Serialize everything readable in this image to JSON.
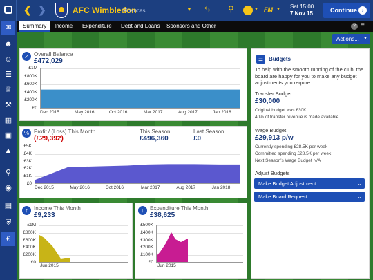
{
  "header": {
    "club": "AFC Wimbledon",
    "subpage": "Finances",
    "day": "Sat 15:00",
    "date": "7 Nov 15",
    "continue_label": "Continue"
  },
  "tabs": [
    "Summary",
    "Income",
    "Expenditure",
    "Debt and Loans",
    "Sponsors and Other"
  ],
  "actions_label": "Actions...",
  "overall": {
    "title": "Overall Balance",
    "value": "£472,029",
    "ylabels": [
      "£1M",
      "£800K",
      "£600K",
      "£400K",
      "£200K",
      "£0"
    ],
    "xlabels": [
      "Dec 2015",
      "May 2016",
      "Oct 2016",
      "Mar 2017",
      "Aug 2017",
      "Jan 2018"
    ]
  },
  "profit": {
    "title": "Profit / (Loss) This Month",
    "value": "(£29,392)",
    "season_title": "This Season",
    "season_value": "£496,360",
    "last_title": "Last Season",
    "last_value": "£0",
    "ylabels": [
      "£5K",
      "£4K",
      "£3K",
      "£2K",
      "£1K",
      "£0"
    ],
    "xlabels": [
      "Dec 2015",
      "May 2016",
      "Oct 2016",
      "Mar 2017",
      "Aug 2017",
      "Jan 2018"
    ]
  },
  "income": {
    "title": "Income This Month",
    "value": "£9,233",
    "ylabels": [
      "£1M",
      "£800K",
      "£600K",
      "£400K",
      "£200K",
      "£0"
    ],
    "xlabel": "Jun 2015"
  },
  "expenditure": {
    "title": "Expenditure This Month",
    "value": "£38,625",
    "ylabels": [
      "£500K",
      "£400K",
      "£300K",
      "£200K",
      "£100K",
      "£0"
    ],
    "xlabel": "Jun 2015"
  },
  "budgets": {
    "title": "Budgets",
    "intro": "To help with the smooth running of the club, the board are happy for you to make any budget adjustments you require.",
    "transfer_title": "Transfer Budget",
    "transfer_value": "£30,000",
    "transfer_note1": "Original budget was £30K",
    "transfer_note2": "40% of transfer revenue is made available",
    "wage_title": "Wage Budget",
    "wage_value": "£29,913 p/w",
    "wage_note1": "Currently spending £28.5K per week",
    "wage_note2": "Committed spending £28.5K per week",
    "wage_note3": "Next Season's Wage Budget N/A",
    "adjust_title": "Adjust Budgets",
    "btn1": "Make Budget Adjustment",
    "btn2": "Make Board Request"
  },
  "colors": {
    "navy": "#1c3f80",
    "accent": "#1e4fb5",
    "balance_fill": "#3b8fc9",
    "profit_fill": "#5b58cf",
    "income_fill": "#c8b417",
    "expenditure_fill": "#c81c92",
    "negative": "#cc0000"
  }
}
